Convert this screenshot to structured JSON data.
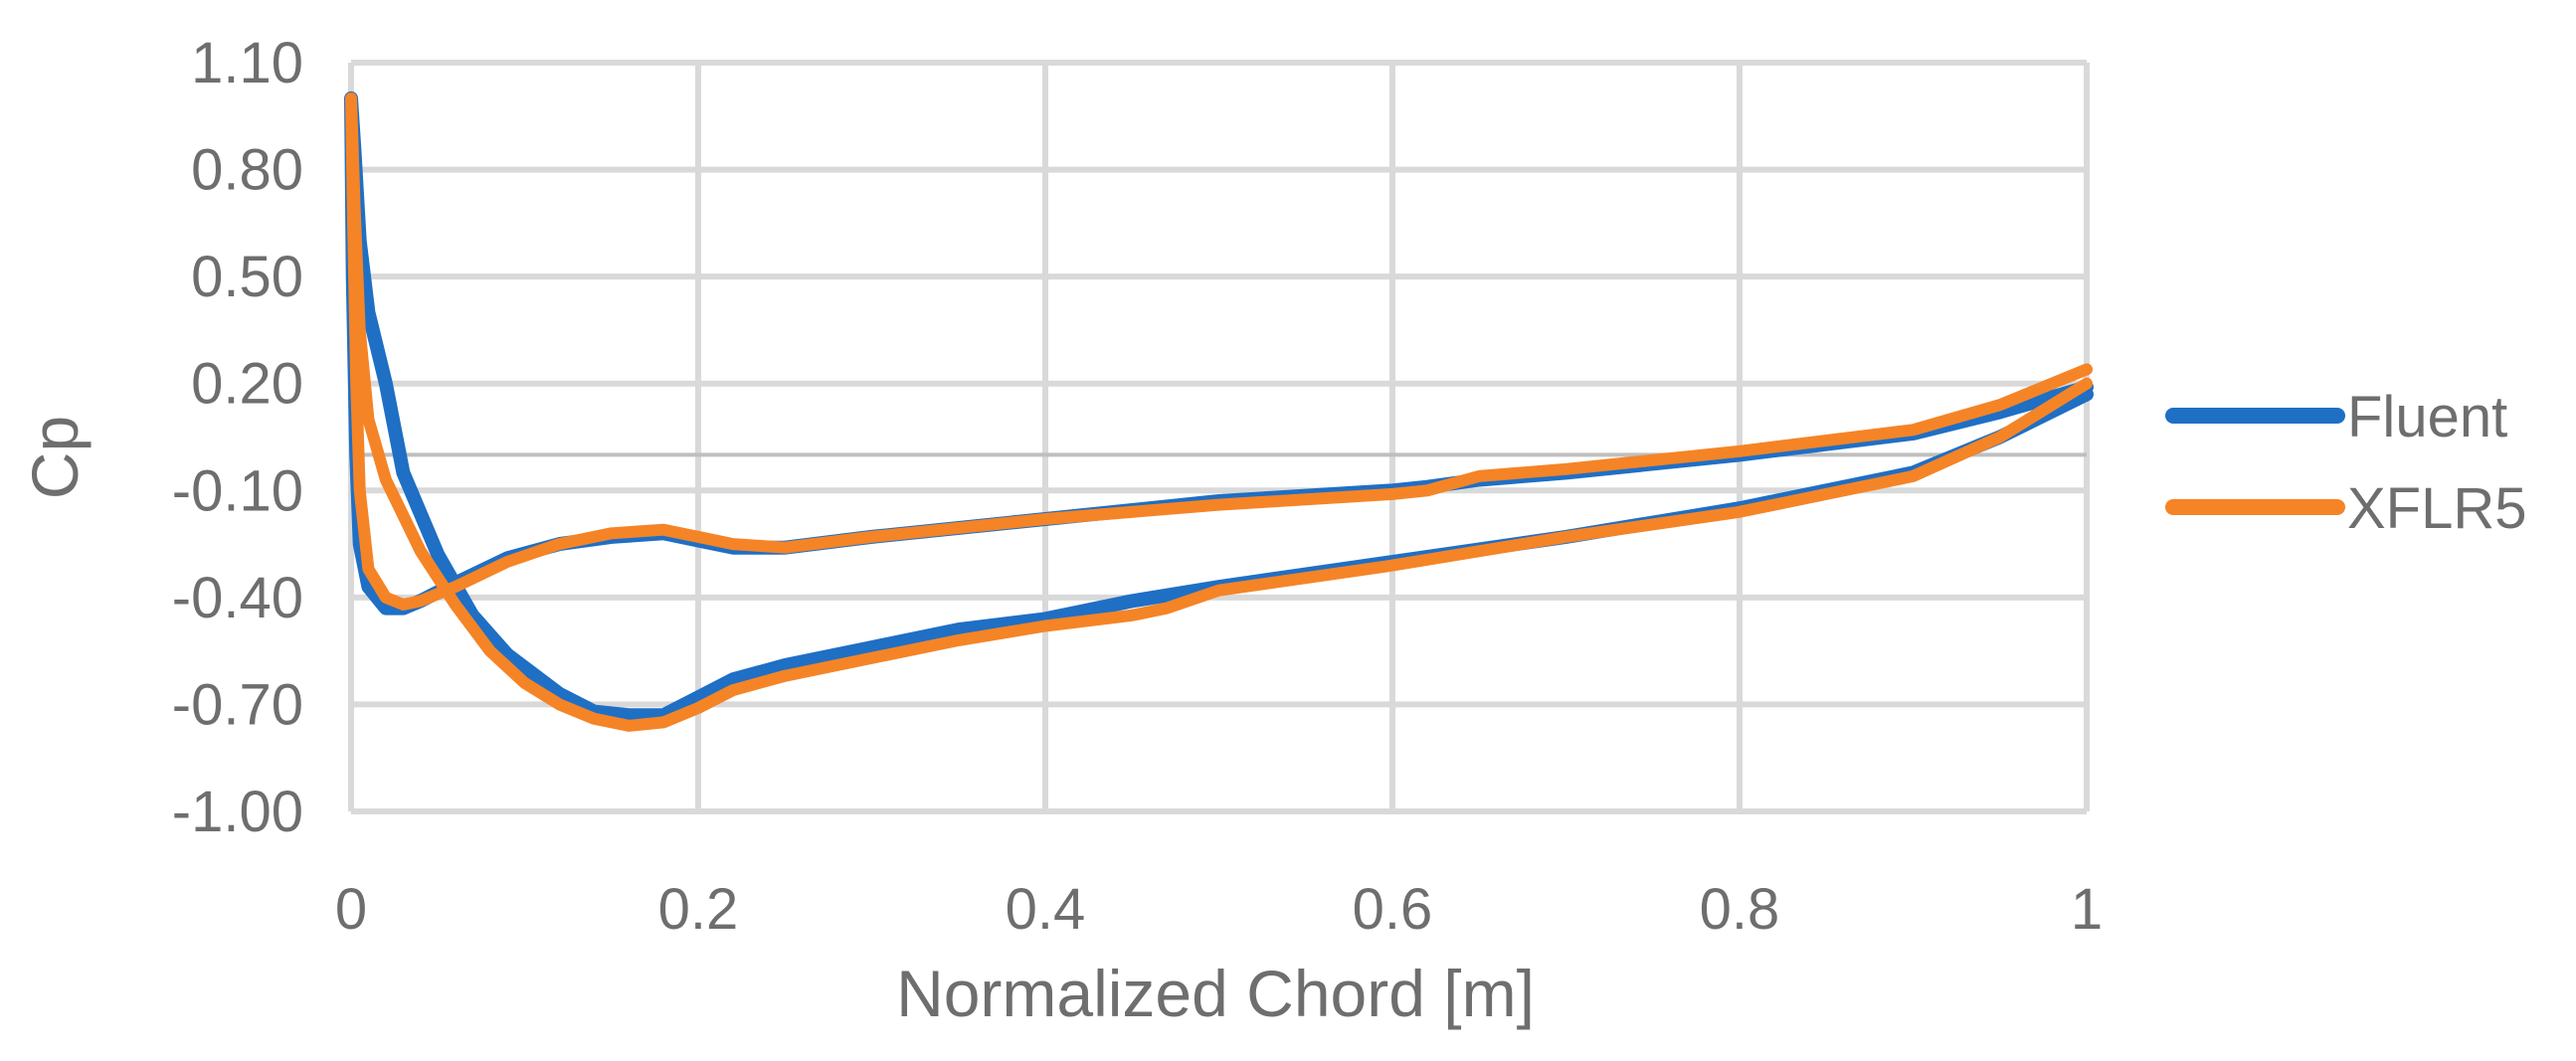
{
  "chart_data": {
    "type": "line",
    "xlabel": "Normalized Chord [m]",
    "ylabel": "Cp",
    "xlim": [
      0,
      1
    ],
    "ylim": [
      -1.0,
      1.1
    ],
    "x_ticks": [
      "0",
      "0.2",
      "0.4",
      "0.6",
      "0.8",
      "1"
    ],
    "y_ticks": [
      "1.10",
      "0.80",
      "0.50",
      "0.20",
      "-0.10",
      "-0.40",
      "-0.70",
      "-1.00"
    ],
    "grid": true,
    "legend_position": "right",
    "series": [
      {
        "name": "Fluent",
        "color": "#1f6fc5",
        "points": [
          [
            1.0,
            0.19
          ],
          [
            0.95,
            0.12
          ],
          [
            0.9,
            0.06
          ],
          [
            0.8,
            0.0
          ],
          [
            0.7,
            -0.05
          ],
          [
            0.65,
            -0.07
          ],
          [
            0.62,
            -0.09
          ],
          [
            0.6,
            -0.1
          ],
          [
            0.5,
            -0.13
          ],
          [
            0.4,
            -0.18
          ],
          [
            0.3,
            -0.23
          ],
          [
            0.25,
            -0.26
          ],
          [
            0.22,
            -0.26
          ],
          [
            0.2,
            -0.24
          ],
          [
            0.18,
            -0.22
          ],
          [
            0.15,
            -0.23
          ],
          [
            0.12,
            -0.25
          ],
          [
            0.09,
            -0.29
          ],
          [
            0.06,
            -0.36
          ],
          [
            0.04,
            -0.41
          ],
          [
            0.03,
            -0.43
          ],
          [
            0.02,
            -0.43
          ],
          [
            0.01,
            -0.37
          ],
          [
            0.005,
            -0.25
          ],
          [
            0.003,
            0.0
          ],
          [
            0.001,
            0.5
          ],
          [
            0.0,
            1.0
          ],
          [
            0.002,
            0.85
          ],
          [
            0.005,
            0.6
          ],
          [
            0.01,
            0.4
          ],
          [
            0.02,
            0.2
          ],
          [
            0.03,
            -0.05
          ],
          [
            0.05,
            -0.28
          ],
          [
            0.07,
            -0.45
          ],
          [
            0.09,
            -0.56
          ],
          [
            0.12,
            -0.67
          ],
          [
            0.14,
            -0.72
          ],
          [
            0.16,
            -0.73
          ],
          [
            0.18,
            -0.73
          ],
          [
            0.2,
            -0.68
          ],
          [
            0.22,
            -0.63
          ],
          [
            0.25,
            -0.59
          ],
          [
            0.3,
            -0.54
          ],
          [
            0.35,
            -0.49
          ],
          [
            0.4,
            -0.46
          ],
          [
            0.45,
            -0.41
          ],
          [
            0.5,
            -0.37
          ],
          [
            0.6,
            -0.3
          ],
          [
            0.7,
            -0.23
          ],
          [
            0.8,
            -0.15
          ],
          [
            0.9,
            -0.05
          ],
          [
            0.95,
            0.05
          ],
          [
            1.0,
            0.17
          ]
        ]
      },
      {
        "name": "XFLR5",
        "color": "#f58426",
        "points": [
          [
            1.0,
            0.24
          ],
          [
            0.95,
            0.14
          ],
          [
            0.9,
            0.07
          ],
          [
            0.8,
            0.01
          ],
          [
            0.7,
            -0.04
          ],
          [
            0.65,
            -0.06
          ],
          [
            0.62,
            -0.1
          ],
          [
            0.6,
            -0.11
          ],
          [
            0.5,
            -0.14
          ],
          [
            0.4,
            -0.18
          ],
          [
            0.3,
            -0.23
          ],
          [
            0.25,
            -0.26
          ],
          [
            0.22,
            -0.25
          ],
          [
            0.2,
            -0.23
          ],
          [
            0.18,
            -0.21
          ],
          [
            0.15,
            -0.22
          ],
          [
            0.12,
            -0.25
          ],
          [
            0.09,
            -0.3
          ],
          [
            0.06,
            -0.37
          ],
          [
            0.04,
            -0.41
          ],
          [
            0.03,
            -0.42
          ],
          [
            0.02,
            -0.4
          ],
          [
            0.01,
            -0.32
          ],
          [
            0.005,
            -0.1
          ],
          [
            0.003,
            0.2
          ],
          [
            0.001,
            0.7
          ],
          [
            0.0,
            1.0
          ],
          [
            0.002,
            0.7
          ],
          [
            0.005,
            0.35
          ],
          [
            0.01,
            0.1
          ],
          [
            0.02,
            -0.07
          ],
          [
            0.04,
            -0.27
          ],
          [
            0.06,
            -0.42
          ],
          [
            0.08,
            -0.55
          ],
          [
            0.1,
            -0.64
          ],
          [
            0.12,
            -0.7
          ],
          [
            0.14,
            -0.74
          ],
          [
            0.16,
            -0.76
          ],
          [
            0.18,
            -0.75
          ],
          [
            0.2,
            -0.71
          ],
          [
            0.22,
            -0.66
          ],
          [
            0.25,
            -0.62
          ],
          [
            0.3,
            -0.57
          ],
          [
            0.35,
            -0.52
          ],
          [
            0.4,
            -0.48
          ],
          [
            0.45,
            -0.45
          ],
          [
            0.47,
            -0.43
          ],
          [
            0.5,
            -0.38
          ],
          [
            0.6,
            -0.31
          ],
          [
            0.7,
            -0.23
          ],
          [
            0.8,
            -0.16
          ],
          [
            0.9,
            -0.06
          ],
          [
            0.95,
            0.05
          ],
          [
            1.0,
            0.2
          ]
        ]
      }
    ]
  }
}
